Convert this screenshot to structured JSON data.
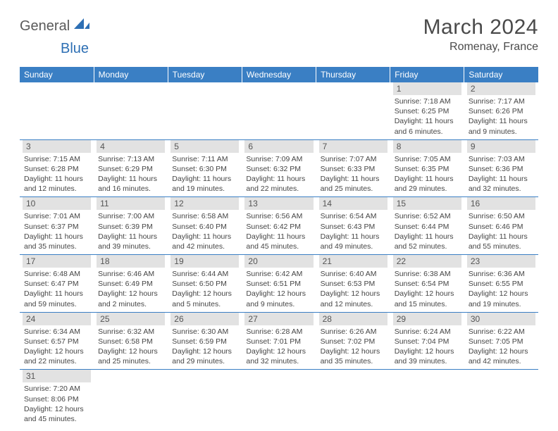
{
  "brand": {
    "text1": "General",
    "text2": "Blue"
  },
  "header": {
    "month_title": "March 2024",
    "location": "Romenay, France"
  },
  "colors": {
    "header_bg": "#3a7fc4",
    "header_fg": "#ffffff",
    "daybar_bg": "#e2e2e2",
    "row_divider": "#3a7fc4",
    "body_text": "#454545",
    "brand_blue": "#2d6fb4"
  },
  "weekdays": [
    "Sunday",
    "Monday",
    "Tuesday",
    "Wednesday",
    "Thursday",
    "Friday",
    "Saturday"
  ],
  "weeks": [
    [
      null,
      null,
      null,
      null,
      null,
      {
        "n": "1",
        "sr": "Sunrise: 7:18 AM",
        "ss": "Sunset: 6:25 PM",
        "d1": "Daylight: 11 hours",
        "d2": "and 6 minutes."
      },
      {
        "n": "2",
        "sr": "Sunrise: 7:17 AM",
        "ss": "Sunset: 6:26 PM",
        "d1": "Daylight: 11 hours",
        "d2": "and 9 minutes."
      }
    ],
    [
      {
        "n": "3",
        "sr": "Sunrise: 7:15 AM",
        "ss": "Sunset: 6:28 PM",
        "d1": "Daylight: 11 hours",
        "d2": "and 12 minutes."
      },
      {
        "n": "4",
        "sr": "Sunrise: 7:13 AM",
        "ss": "Sunset: 6:29 PM",
        "d1": "Daylight: 11 hours",
        "d2": "and 16 minutes."
      },
      {
        "n": "5",
        "sr": "Sunrise: 7:11 AM",
        "ss": "Sunset: 6:30 PM",
        "d1": "Daylight: 11 hours",
        "d2": "and 19 minutes."
      },
      {
        "n": "6",
        "sr": "Sunrise: 7:09 AM",
        "ss": "Sunset: 6:32 PM",
        "d1": "Daylight: 11 hours",
        "d2": "and 22 minutes."
      },
      {
        "n": "7",
        "sr": "Sunrise: 7:07 AM",
        "ss": "Sunset: 6:33 PM",
        "d1": "Daylight: 11 hours",
        "d2": "and 25 minutes."
      },
      {
        "n": "8",
        "sr": "Sunrise: 7:05 AM",
        "ss": "Sunset: 6:35 PM",
        "d1": "Daylight: 11 hours",
        "d2": "and 29 minutes."
      },
      {
        "n": "9",
        "sr": "Sunrise: 7:03 AM",
        "ss": "Sunset: 6:36 PM",
        "d1": "Daylight: 11 hours",
        "d2": "and 32 minutes."
      }
    ],
    [
      {
        "n": "10",
        "sr": "Sunrise: 7:01 AM",
        "ss": "Sunset: 6:37 PM",
        "d1": "Daylight: 11 hours",
        "d2": "and 35 minutes."
      },
      {
        "n": "11",
        "sr": "Sunrise: 7:00 AM",
        "ss": "Sunset: 6:39 PM",
        "d1": "Daylight: 11 hours",
        "d2": "and 39 minutes."
      },
      {
        "n": "12",
        "sr": "Sunrise: 6:58 AM",
        "ss": "Sunset: 6:40 PM",
        "d1": "Daylight: 11 hours",
        "d2": "and 42 minutes."
      },
      {
        "n": "13",
        "sr": "Sunrise: 6:56 AM",
        "ss": "Sunset: 6:42 PM",
        "d1": "Daylight: 11 hours",
        "d2": "and 45 minutes."
      },
      {
        "n": "14",
        "sr": "Sunrise: 6:54 AM",
        "ss": "Sunset: 6:43 PM",
        "d1": "Daylight: 11 hours",
        "d2": "and 49 minutes."
      },
      {
        "n": "15",
        "sr": "Sunrise: 6:52 AM",
        "ss": "Sunset: 6:44 PM",
        "d1": "Daylight: 11 hours",
        "d2": "and 52 minutes."
      },
      {
        "n": "16",
        "sr": "Sunrise: 6:50 AM",
        "ss": "Sunset: 6:46 PM",
        "d1": "Daylight: 11 hours",
        "d2": "and 55 minutes."
      }
    ],
    [
      {
        "n": "17",
        "sr": "Sunrise: 6:48 AM",
        "ss": "Sunset: 6:47 PM",
        "d1": "Daylight: 11 hours",
        "d2": "and 59 minutes."
      },
      {
        "n": "18",
        "sr": "Sunrise: 6:46 AM",
        "ss": "Sunset: 6:49 PM",
        "d1": "Daylight: 12 hours",
        "d2": "and 2 minutes."
      },
      {
        "n": "19",
        "sr": "Sunrise: 6:44 AM",
        "ss": "Sunset: 6:50 PM",
        "d1": "Daylight: 12 hours",
        "d2": "and 5 minutes."
      },
      {
        "n": "20",
        "sr": "Sunrise: 6:42 AM",
        "ss": "Sunset: 6:51 PM",
        "d1": "Daylight: 12 hours",
        "d2": "and 9 minutes."
      },
      {
        "n": "21",
        "sr": "Sunrise: 6:40 AM",
        "ss": "Sunset: 6:53 PM",
        "d1": "Daylight: 12 hours",
        "d2": "and 12 minutes."
      },
      {
        "n": "22",
        "sr": "Sunrise: 6:38 AM",
        "ss": "Sunset: 6:54 PM",
        "d1": "Daylight: 12 hours",
        "d2": "and 15 minutes."
      },
      {
        "n": "23",
        "sr": "Sunrise: 6:36 AM",
        "ss": "Sunset: 6:55 PM",
        "d1": "Daylight: 12 hours",
        "d2": "and 19 minutes."
      }
    ],
    [
      {
        "n": "24",
        "sr": "Sunrise: 6:34 AM",
        "ss": "Sunset: 6:57 PM",
        "d1": "Daylight: 12 hours",
        "d2": "and 22 minutes."
      },
      {
        "n": "25",
        "sr": "Sunrise: 6:32 AM",
        "ss": "Sunset: 6:58 PM",
        "d1": "Daylight: 12 hours",
        "d2": "and 25 minutes."
      },
      {
        "n": "26",
        "sr": "Sunrise: 6:30 AM",
        "ss": "Sunset: 6:59 PM",
        "d1": "Daylight: 12 hours",
        "d2": "and 29 minutes."
      },
      {
        "n": "27",
        "sr": "Sunrise: 6:28 AM",
        "ss": "Sunset: 7:01 PM",
        "d1": "Daylight: 12 hours",
        "d2": "and 32 minutes."
      },
      {
        "n": "28",
        "sr": "Sunrise: 6:26 AM",
        "ss": "Sunset: 7:02 PM",
        "d1": "Daylight: 12 hours",
        "d2": "and 35 minutes."
      },
      {
        "n": "29",
        "sr": "Sunrise: 6:24 AM",
        "ss": "Sunset: 7:04 PM",
        "d1": "Daylight: 12 hours",
        "d2": "and 39 minutes."
      },
      {
        "n": "30",
        "sr": "Sunrise: 6:22 AM",
        "ss": "Sunset: 7:05 PM",
        "d1": "Daylight: 12 hours",
        "d2": "and 42 minutes."
      }
    ],
    [
      {
        "n": "31",
        "sr": "Sunrise: 7:20 AM",
        "ss": "Sunset: 8:06 PM",
        "d1": "Daylight: 12 hours",
        "d2": "and 45 minutes."
      },
      null,
      null,
      null,
      null,
      null,
      null
    ]
  ]
}
